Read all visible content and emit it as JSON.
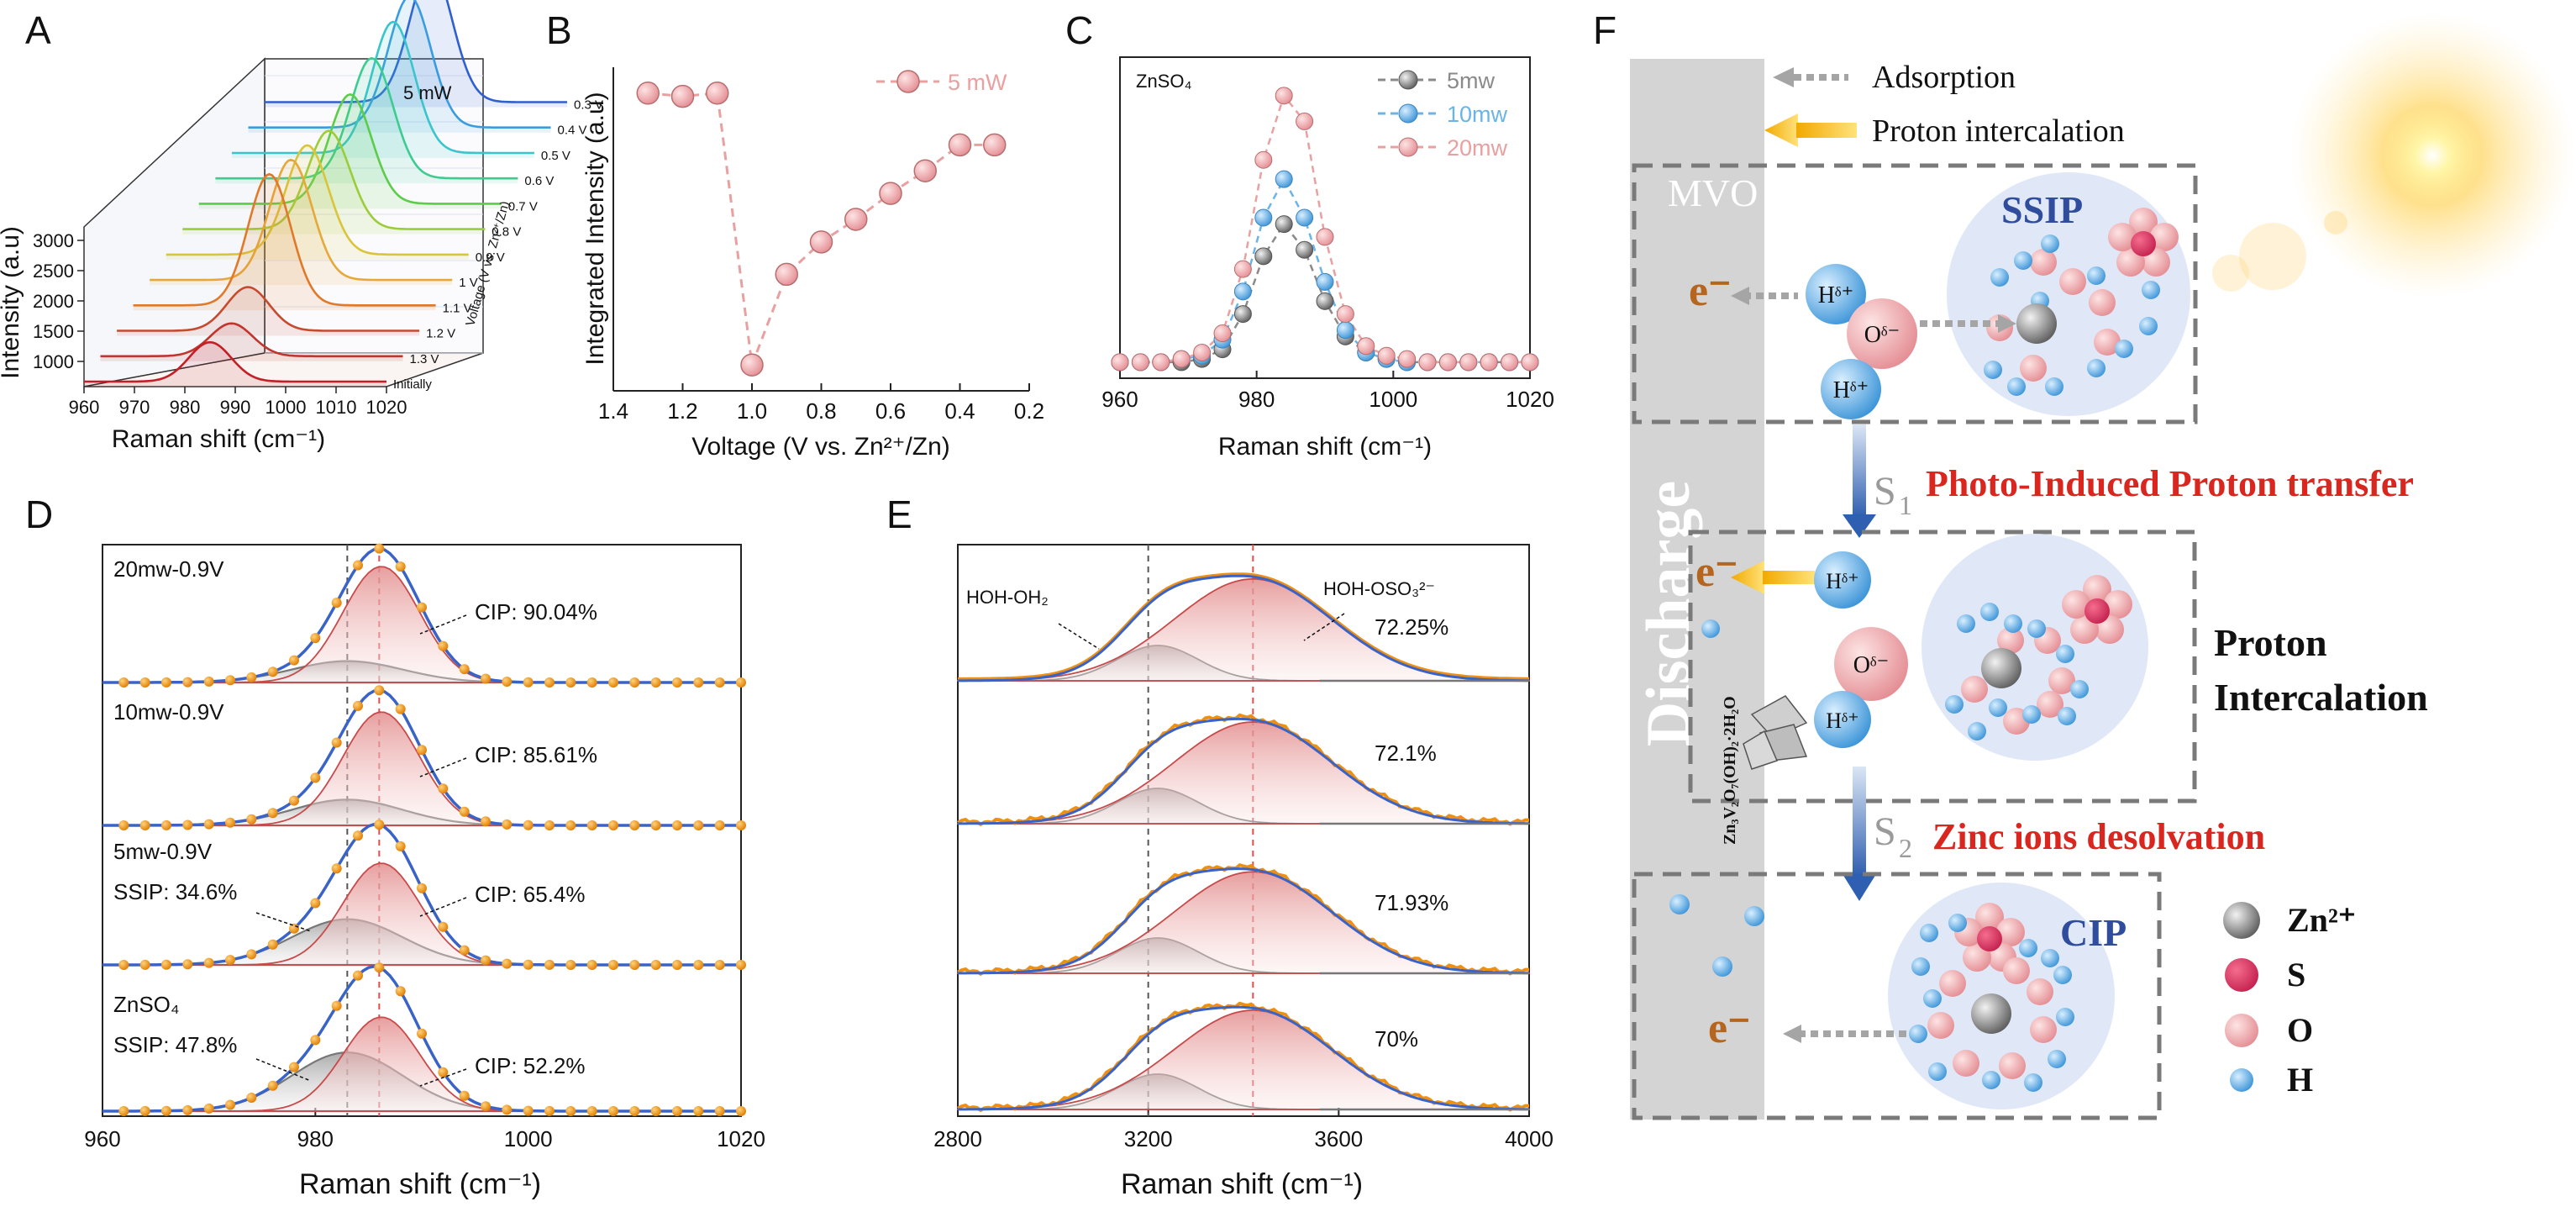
{
  "colors": {
    "pink": "#e9a0a0",
    "pinkDark": "#d9514f",
    "grey": "#8a8a8a",
    "blue": "#3a63c8",
    "orange": "#ef8f12",
    "lightBlue": "#6ab4e8",
    "red": "#d9261e",
    "navy": "#2f4d9c",
    "brown": "#b5651d"
  },
  "chart_data": [
    {
      "panel": "A",
      "type": "line",
      "subtype": "waterfall-3d",
      "legend": "5 mW",
      "xlabel": "Raman shift (cm⁻¹)",
      "ylabel": "Intensity (a.u)",
      "zlabel": "Voltage (V vs. Zn²⁺/Zn)",
      "xticks": [
        "960",
        "970",
        "980",
        "990",
        "1000",
        "1010",
        "1020"
      ],
      "yticks": [
        "1000",
        "1500",
        "2000",
        "2500",
        "3000"
      ],
      "series_labels": [
        "Initially",
        "1.3 V",
        "1.2 V",
        "1.1 V",
        "1 V",
        "0.9 V",
        "0.8 V",
        "0.7 V",
        "0.6 V",
        "0.5 V",
        "0.4 V",
        "0.3 V"
      ],
      "peak_positions": [
        985,
        986,
        986,
        987,
        988,
        988,
        989,
        990,
        991,
        992,
        992,
        993
      ],
      "peak_heights": [
        0.18,
        0.15,
        0.2,
        0.6,
        0.55,
        0.5,
        0.45,
        0.5,
        0.55,
        0.6,
        0.6,
        0.62
      ]
    },
    {
      "panel": "B",
      "type": "scatter",
      "legend": "5 mW",
      "xlabel": "Voltage (V vs. Zn²⁺/Zn)",
      "ylabel": "Integrated Intensity (a.u)",
      "xlim": [
        1.4,
        0.2
      ],
      "xticks": [
        "1.4",
        "1.2",
        "1.0",
        "0.8",
        "0.6",
        "0.4",
        "0.2"
      ],
      "ylim": [
        0,
        1
      ],
      "x": [
        1.3,
        1.2,
        1.1,
        1.0,
        0.9,
        0.8,
        0.7,
        0.6,
        0.5,
        0.4,
        0.3
      ],
      "y": [
        0.92,
        0.91,
        0.92,
        0.08,
        0.36,
        0.46,
        0.53,
        0.61,
        0.68,
        0.76,
        0.76
      ]
    },
    {
      "panel": "C",
      "type": "scatter",
      "annotation": "ZnSO₄",
      "xlabel": "Raman shift (cm⁻¹)",
      "xlim": [
        960,
        1020
      ],
      "xticks": [
        "960",
        "980",
        "1000",
        "1020"
      ],
      "ylim": [
        0,
        1
      ],
      "series": [
        {
          "name": "5mw",
          "x": [
            960,
            963,
            966,
            969,
            972,
            975,
            978,
            981,
            984,
            987,
            990,
            993,
            996,
            999,
            1002,
            1005,
            1008,
            1011,
            1014,
            1017,
            1020
          ],
          "y": [
            0.05,
            0.05,
            0.05,
            0.05,
            0.06,
            0.09,
            0.2,
            0.38,
            0.48,
            0.4,
            0.24,
            0.13,
            0.08,
            0.06,
            0.05,
            0.05,
            0.05,
            0.05,
            0.05,
            0.05,
            0.05
          ]
        },
        {
          "name": "10mw",
          "x": [
            960,
            963,
            966,
            969,
            972,
            975,
            978,
            981,
            984,
            987,
            990,
            993,
            996,
            999,
            1002,
            1005,
            1008,
            1011,
            1014,
            1017,
            1020
          ],
          "y": [
            0.05,
            0.05,
            0.05,
            0.06,
            0.07,
            0.12,
            0.27,
            0.5,
            0.62,
            0.5,
            0.3,
            0.15,
            0.08,
            0.06,
            0.05,
            0.05,
            0.05,
            0.05,
            0.05,
            0.05,
            0.05
          ]
        },
        {
          "name": "20mw",
          "x": [
            960,
            963,
            966,
            969,
            972,
            975,
            978,
            981,
            984,
            987,
            990,
            993,
            996,
            999,
            1002,
            1005,
            1008,
            1011,
            1014,
            1017,
            1020
          ],
          "y": [
            0.05,
            0.05,
            0.05,
            0.06,
            0.08,
            0.14,
            0.34,
            0.68,
            0.88,
            0.8,
            0.44,
            0.2,
            0.1,
            0.07,
            0.06,
            0.05,
            0.05,
            0.05,
            0.05,
            0.05,
            0.05
          ]
        }
      ]
    },
    {
      "panel": "D",
      "type": "line",
      "xlabel": "Raman shift (cm⁻¹)",
      "xlim": [
        960,
        1020
      ],
      "xticks": [
        "960",
        "980",
        "1000",
        "1020"
      ],
      "vlines": [
        983,
        986
      ],
      "rows": [
        {
          "label": "20mw-0.9V",
          "cip": "CIP: 90.04%",
          "ssip": "",
          "cip_frac": 0.9004,
          "ssip_frac": 0.0996
        },
        {
          "label": "10mw-0.9V",
          "cip": "CIP: 85.61%",
          "ssip": "",
          "cip_frac": 0.8561,
          "ssip_frac": 0.1439
        },
        {
          "label": "5mw-0.9V",
          "cip": "CIP: 65.4%",
          "ssip": "SSIP: 34.6%",
          "cip_frac": 0.654,
          "ssip_frac": 0.346
        },
        {
          "label": "ZnSO₄",
          "cip": "CIP: 52.2%",
          "ssip": "SSIP: 47.8%",
          "cip_frac": 0.522,
          "ssip_frac": 0.478
        }
      ]
    },
    {
      "panel": "E",
      "type": "line",
      "xlabel": "Raman shift (cm⁻¹)",
      "xlim": [
        2800,
        4000
      ],
      "xticks": [
        "2800",
        "3200",
        "3600",
        "4000"
      ],
      "vlines": [
        3200,
        3420
      ],
      "annotations": {
        "left": "HOH-OH₂",
        "right": "HOH-OSO₃²⁻"
      },
      "rows": [
        {
          "pct": "72.25%",
          "frac": 0.7225
        },
        {
          "pct": "72.1%",
          "frac": 0.721
        },
        {
          "pct": "71.93%",
          "frac": 0.7193
        },
        {
          "pct": "70%",
          "frac": 0.7
        }
      ]
    }
  ],
  "panels": {
    "A": "A",
    "B": "B",
    "C": "C",
    "D": "D",
    "E": "E",
    "F": "F"
  },
  "schematic": {
    "legend_adsorption": "Adsorption",
    "legend_proton": "Proton intercalation",
    "mvo": "MVO",
    "discharge": "Discharge",
    "ssip": "SSIP",
    "cip": "CIP",
    "electron": "e⁻",
    "h_label": "Hᵟ⁺",
    "o_label": "Oᵟ⁻",
    "s1": "S",
    "s1_sub": "1",
    "s2": "S",
    "s2_sub": "2",
    "step1": "Photo-Induced Proton transfer",
    "step2": "Zinc ions desolvation",
    "proton_int_1": "Proton",
    "proton_int_2": "Intercalation",
    "zvo": "Zn₃V₂O₇(OH)₂·2H₂O",
    "legend_items": [
      "Zn²⁺",
      "S",
      "O",
      "H"
    ]
  }
}
